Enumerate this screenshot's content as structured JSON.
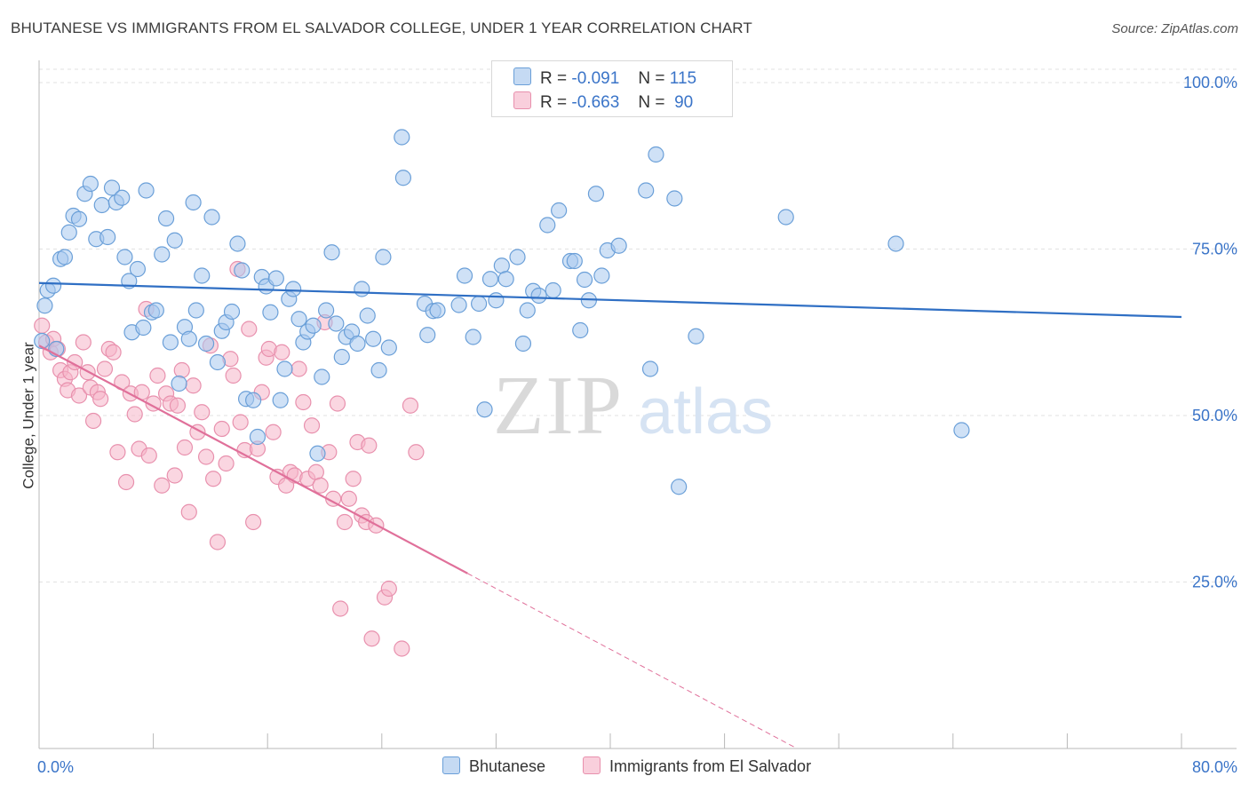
{
  "header": {
    "title": "BHUTANESE VS IMMIGRANTS FROM EL SALVADOR COLLEGE, UNDER 1 YEAR CORRELATION CHART",
    "source_prefix": "Source: ",
    "source_name": "ZipAtlas.com"
  },
  "watermark": {
    "zip": "ZIP",
    "atlas": "atlas"
  },
  "legend": {
    "r_label": "R =",
    "n_label": "N =",
    "rows": [
      {
        "r": "-0.091",
        "n": "115",
        "color": "#a8c8ee"
      },
      {
        "r": "-0.663",
        "n": "90",
        "color": "#f5b4c8"
      }
    ]
  },
  "colors": {
    "blue_fill": "#a8c8ee",
    "blue_stroke": "#6a9fd8",
    "blue_line": "#2f6fc4",
    "pink_fill": "#f5b4c8",
    "pink_stroke": "#e890ad",
    "pink_line": "#e0709a",
    "tick_label": "#3a74c8",
    "grid": "#e2e2e2"
  },
  "chart_data": {
    "type": "scatter",
    "title": "BHUTANESE VS IMMIGRANTS FROM EL SALVADOR COLLEGE, UNDER 1 YEAR CORRELATION CHART",
    "xlabel": "",
    "ylabel": "College, Under 1 year",
    "xlim": [
      0,
      80
    ],
    "ylim": [
      0,
      102
    ],
    "x_tick_labels": [
      "0.0%",
      "80.0%"
    ],
    "y_ticks": [
      25,
      50,
      75,
      100
    ],
    "y_tick_labels": [
      "25.0%",
      "50.0%",
      "75.0%",
      "100.0%"
    ],
    "grid": true,
    "legend_position": "top-center",
    "series": [
      {
        "name": "Bhutanese",
        "color": "#a8c8ee",
        "trend": {
          "x": [
            0,
            80
          ],
          "y": [
            69.9,
            64.8
          ],
          "style": "solid"
        },
        "points": [
          [
            0.2,
            61.2
          ],
          [
            0.4,
            66.5
          ],
          [
            0.6,
            68.8
          ],
          [
            1.0,
            69.5
          ],
          [
            1.5,
            73.5
          ],
          [
            1.8,
            73.8
          ],
          [
            2.1,
            77.5
          ],
          [
            2.4,
            80.0
          ],
          [
            2.8,
            79.5
          ],
          [
            3.2,
            83.3
          ],
          [
            3.6,
            84.8
          ],
          [
            4.0,
            76.5
          ],
          [
            4.4,
            81.6
          ],
          [
            4.8,
            76.8
          ],
          [
            5.1,
            84.2
          ],
          [
            5.4,
            82.0
          ],
          [
            5.8,
            82.7
          ],
          [
            6.0,
            73.8
          ],
          [
            6.3,
            70.2
          ],
          [
            6.5,
            62.5
          ],
          [
            6.9,
            72.0
          ],
          [
            7.3,
            63.2
          ],
          [
            7.5,
            83.8
          ],
          [
            7.9,
            65.5
          ],
          [
            8.2,
            65.8
          ],
          [
            8.6,
            74.2
          ],
          [
            8.9,
            79.6
          ],
          [
            9.2,
            61.0
          ],
          [
            9.5,
            76.3
          ],
          [
            9.8,
            54.8
          ],
          [
            10.2,
            63.3
          ],
          [
            10.5,
            61.5
          ],
          [
            10.8,
            82.0
          ],
          [
            11.0,
            65.8
          ],
          [
            11.4,
            71.0
          ],
          [
            11.7,
            60.8
          ],
          [
            12.1,
            79.8
          ],
          [
            12.5,
            58.0
          ],
          [
            12.8,
            62.7
          ],
          [
            13.1,
            64.0
          ],
          [
            13.5,
            65.6
          ],
          [
            13.9,
            75.8
          ],
          [
            14.2,
            71.8
          ],
          [
            14.5,
            52.5
          ],
          [
            15.0,
            52.3
          ],
          [
            15.3,
            46.8
          ],
          [
            15.6,
            70.8
          ],
          [
            15.9,
            69.4
          ],
          [
            16.2,
            65.5
          ],
          [
            16.6,
            70.6
          ],
          [
            16.9,
            52.3
          ],
          [
            17.2,
            57.0
          ],
          [
            17.5,
            67.5
          ],
          [
            17.8,
            69.0
          ],
          [
            18.2,
            64.5
          ],
          [
            18.5,
            61.0
          ],
          [
            18.8,
            62.6
          ],
          [
            19.2,
            63.5
          ],
          [
            19.5,
            44.3
          ],
          [
            19.8,
            55.8
          ],
          [
            20.1,
            65.8
          ],
          [
            20.5,
            74.5
          ],
          [
            20.8,
            63.8
          ],
          [
            21.2,
            58.8
          ],
          [
            21.5,
            61.8
          ],
          [
            21.9,
            62.6
          ],
          [
            22.3,
            60.8
          ],
          [
            22.6,
            69.0
          ],
          [
            23.0,
            65.0
          ],
          [
            23.4,
            61.5
          ],
          [
            23.8,
            56.8
          ],
          [
            24.1,
            73.8
          ],
          [
            24.5,
            60.2
          ],
          [
            25.4,
            91.8
          ],
          [
            25.5,
            85.7
          ],
          [
            27.0,
            66.8
          ],
          [
            27.2,
            62.1
          ],
          [
            27.6,
            65.7
          ],
          [
            27.9,
            65.8
          ],
          [
            29.4,
            66.6
          ],
          [
            29.8,
            71.0
          ],
          [
            30.4,
            61.8
          ],
          [
            30.8,
            66.8
          ],
          [
            31.2,
            50.9
          ],
          [
            31.6,
            70.5
          ],
          [
            32.0,
            67.3
          ],
          [
            32.4,
            72.5
          ],
          [
            32.7,
            70.5
          ],
          [
            33.5,
            73.8
          ],
          [
            33.9,
            60.8
          ],
          [
            34.2,
            65.8
          ],
          [
            34.6,
            68.7
          ],
          [
            35.0,
            68.0
          ],
          [
            35.6,
            78.6
          ],
          [
            36.0,
            68.8
          ],
          [
            36.4,
            80.8
          ],
          [
            37.2,
            73.2
          ],
          [
            37.5,
            73.2
          ],
          [
            37.9,
            62.8
          ],
          [
            38.2,
            70.4
          ],
          [
            38.5,
            67.3
          ],
          [
            39.0,
            83.3
          ],
          [
            39.4,
            71.0
          ],
          [
            39.8,
            74.8
          ],
          [
            40.6,
            75.5
          ],
          [
            42.5,
            83.8
          ],
          [
            42.8,
            57.0
          ],
          [
            43.2,
            89.2
          ],
          [
            44.5,
            82.6
          ],
          [
            44.8,
            39.3
          ],
          [
            46.0,
            61.9
          ],
          [
            52.3,
            79.8
          ],
          [
            60.0,
            75.8
          ],
          [
            64.6,
            47.8
          ],
          [
            1.2,
            60.0
          ]
        ]
      },
      {
        "name": "Immigrants from El Salvador",
        "color": "#f5b4c8",
        "trend": {
          "x": [
            0,
            30.0
          ],
          "y": [
            60.5,
            26.3
          ],
          "style": "solid",
          "dashed_x": [
            30.0,
            80
          ],
          "dashed_y": [
            26.3,
            -30.7
          ]
        },
        "points": [
          [
            0.2,
            63.5
          ],
          [
            0.5,
            61.0
          ],
          [
            0.8,
            59.5
          ],
          [
            1.0,
            61.5
          ],
          [
            1.3,
            60.0
          ],
          [
            1.5,
            56.8
          ],
          [
            1.8,
            55.5
          ],
          [
            2.0,
            53.8
          ],
          [
            2.2,
            56.5
          ],
          [
            2.5,
            58.0
          ],
          [
            2.8,
            53.0
          ],
          [
            3.1,
            61.0
          ],
          [
            3.4,
            56.5
          ],
          [
            3.6,
            54.2
          ],
          [
            3.8,
            49.2
          ],
          [
            4.1,
            53.5
          ],
          [
            4.3,
            52.5
          ],
          [
            4.6,
            57.0
          ],
          [
            4.9,
            60.0
          ],
          [
            5.2,
            59.5
          ],
          [
            5.5,
            44.5
          ],
          [
            5.8,
            55.0
          ],
          [
            6.1,
            40.0
          ],
          [
            6.4,
            53.3
          ],
          [
            6.7,
            50.2
          ],
          [
            7.0,
            45.0
          ],
          [
            7.2,
            53.5
          ],
          [
            7.5,
            66.0
          ],
          [
            7.7,
            44.0
          ],
          [
            8.0,
            51.8
          ],
          [
            8.3,
            56.0
          ],
          [
            8.6,
            39.5
          ],
          [
            8.9,
            53.3
          ],
          [
            9.2,
            51.8
          ],
          [
            9.5,
            41.0
          ],
          [
            9.7,
            51.5
          ],
          [
            10.0,
            56.8
          ],
          [
            10.2,
            45.2
          ],
          [
            10.5,
            35.5
          ],
          [
            10.8,
            54.5
          ],
          [
            11.1,
            47.5
          ],
          [
            11.4,
            50.5
          ],
          [
            11.7,
            43.8
          ],
          [
            12.0,
            60.5
          ],
          [
            12.2,
            40.5
          ],
          [
            12.5,
            31.0
          ],
          [
            12.8,
            48.0
          ],
          [
            13.1,
            42.8
          ],
          [
            13.4,
            58.5
          ],
          [
            13.6,
            56.0
          ],
          [
            13.9,
            72.0
          ],
          [
            14.1,
            49.0
          ],
          [
            14.4,
            44.8
          ],
          [
            14.7,
            63.0
          ],
          [
            15.0,
            34.0
          ],
          [
            15.3,
            45.0
          ],
          [
            15.6,
            53.5
          ],
          [
            15.9,
            58.7
          ],
          [
            16.1,
            60.0
          ],
          [
            16.4,
            47.5
          ],
          [
            16.7,
            40.8
          ],
          [
            17.0,
            59.5
          ],
          [
            17.3,
            39.5
          ],
          [
            17.6,
            41.5
          ],
          [
            17.9,
            41.0
          ],
          [
            18.2,
            57.0
          ],
          [
            18.5,
            52.0
          ],
          [
            18.8,
            40.5
          ],
          [
            19.1,
            48.5
          ],
          [
            19.4,
            41.5
          ],
          [
            19.7,
            39.5
          ],
          [
            20.0,
            64.0
          ],
          [
            20.3,
            44.5
          ],
          [
            20.6,
            37.5
          ],
          [
            20.9,
            51.8
          ],
          [
            21.1,
            21.0
          ],
          [
            21.4,
            34.0
          ],
          [
            21.7,
            37.5
          ],
          [
            22.0,
            40.5
          ],
          [
            22.3,
            46.0
          ],
          [
            22.6,
            35.0
          ],
          [
            22.9,
            34.0
          ],
          [
            23.1,
            45.5
          ],
          [
            23.3,
            16.5
          ],
          [
            23.6,
            33.5
          ],
          [
            24.2,
            22.7
          ],
          [
            24.5,
            24.0
          ],
          [
            25.4,
            15.0
          ],
          [
            26.0,
            51.5
          ],
          [
            26.4,
            44.5
          ]
        ]
      }
    ]
  },
  "bottom_legend": [
    {
      "label": "Bhutanese",
      "color": "#a8c8ee"
    },
    {
      "label": "Immigrants from El Salvador",
      "color": "#f5b4c8"
    }
  ]
}
